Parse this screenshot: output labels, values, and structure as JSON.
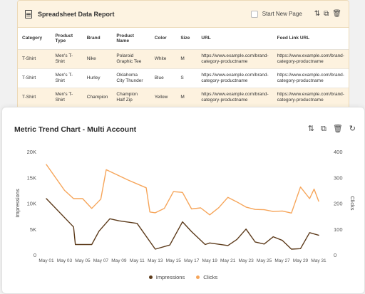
{
  "report": {
    "title": "Spreadsheet Data Report",
    "start_new_page_label": "Start New Page",
    "columns": [
      "Category",
      "Product Type",
      "Brand",
      "Product Name",
      "Color",
      "Size",
      "URL",
      "Feed Link URL"
    ],
    "rows": [
      [
        "T-Shirt",
        "Men's T-Shirt",
        "Nike",
        "Polaroid Graphic Tee",
        "White",
        "M",
        "https://www.example.com/brand-category-productname",
        "https://www.example.com/brand-category-productname"
      ],
      [
        "T-Shirt",
        "Men's T-Shirt",
        "Hurley",
        "Oklahoma City Thunder",
        "Blue",
        "S",
        "https://www.example.com/brand-category-productname",
        "https://www.example.com/brand-category-productname"
      ],
      [
        "T-Shirt",
        "Men's T-Shirt",
        "Champion",
        "Champion Half Zip",
        "Yellow",
        "M",
        "https://www.example.com/brand-category-productname",
        "https://www.example.com/brand-category-productname"
      ]
    ]
  },
  "chart_card": {
    "title": "Metric Trend Chart - Multi Account"
  },
  "chart_data": {
    "type": "line",
    "title": "Metric Trend Chart - Multi Account",
    "x_tick_labels": [
      "May 01",
      "May 03",
      "May 05",
      "May 07",
      "May 09",
      "May 11",
      "May 13",
      "May 15",
      "May 17",
      "May 19",
      "May 21",
      "May 23",
      "May 25",
      "May 27",
      "May 29",
      "May 31"
    ],
    "y_left": {
      "label": "Impressions",
      "ticks": [
        "0",
        "5K",
        "10K",
        "15K",
        "20K"
      ],
      "lim": [
        0,
        20000
      ]
    },
    "y_right": {
      "label": "Clicks",
      "ticks": [
        "0",
        "100",
        "200",
        "300",
        "400"
      ],
      "lim": [
        0,
        400
      ]
    },
    "legend_position": "bottom-center",
    "grid": false,
    "series": [
      {
        "name": "Impressions",
        "axis": "left",
        "color": "#5c3a1a",
        "x": [
          1,
          4,
          4.2,
          6,
          6.8,
          8,
          9,
          11,
          13,
          14.6,
          16,
          17,
          18.5,
          19,
          21,
          22,
          23,
          24,
          25,
          26,
          27,
          28,
          29,
          30,
          31
        ],
        "values": [
          10900,
          5400,
          2000,
          2000,
          4600,
          7000,
          6600,
          6100,
          1100,
          1900,
          6400,
          4500,
          2000,
          2300,
          1800,
          3000,
          5000,
          2500,
          2100,
          3500,
          2800,
          1100,
          1200,
          4300,
          3800
        ]
      },
      {
        "name": "Clicks",
        "axis": "right",
        "color": "#f6a55a",
        "x": [
          1,
          3,
          4,
          5,
          6,
          7,
          7.6,
          10,
          12,
          12.4,
          13,
          14,
          15,
          16,
          17,
          18,
          19,
          20,
          21,
          22,
          23,
          24,
          25,
          26,
          27,
          28,
          29,
          30,
          30.5,
          31
        ],
        "values": [
          350,
          250,
          218,
          218,
          180,
          216,
          330,
          290,
          260,
          166,
          163,
          180,
          245,
          242,
          178,
          182,
          155,
          183,
          223,
          205,
          185,
          176,
          175,
          168,
          170,
          162,
          263,
          218,
          255,
          208
        ]
      }
    ]
  }
}
